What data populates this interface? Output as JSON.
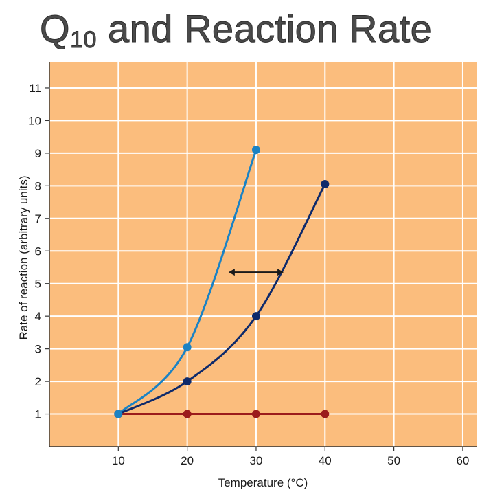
{
  "title": {
    "main": "Q",
    "sub": "10",
    "rest": " and Reaction Rate"
  },
  "chart_data": {
    "type": "line",
    "xlabel": "Temperature (°C)",
    "ylabel": "Rate of reaction (arbitrary units)",
    "xlim": [
      0,
      62
    ],
    "ylim": [
      0,
      11.8
    ],
    "xticks": [
      10,
      20,
      30,
      40,
      50,
      60
    ],
    "yticks": [
      1,
      2,
      3,
      4,
      5,
      6,
      7,
      8,
      9,
      10,
      11
    ],
    "grid": true,
    "background_color": "#fbbd7d",
    "grid_color": "#ffffff",
    "series": [
      {
        "x": [
          10,
          20,
          30
        ],
        "y": [
          1,
          3.05,
          9.1
        ],
        "color": "#1a82c4",
        "smooth": true
      },
      {
        "x": [
          10,
          20,
          30,
          40
        ],
        "y": [
          1,
          2,
          4,
          8.05
        ],
        "color": "#0e2a6b",
        "smooth": true
      },
      {
        "x": [
          10,
          20,
          30,
          40
        ],
        "y": [
          1,
          1,
          1,
          1
        ],
        "color": "#9b1c1c",
        "smooth": false
      }
    ],
    "annotations": [
      {
        "type": "double-arrow",
        "x1": 26,
        "x2": 34,
        "y": 5.35,
        "color": "#1a1a1a"
      }
    ]
  }
}
